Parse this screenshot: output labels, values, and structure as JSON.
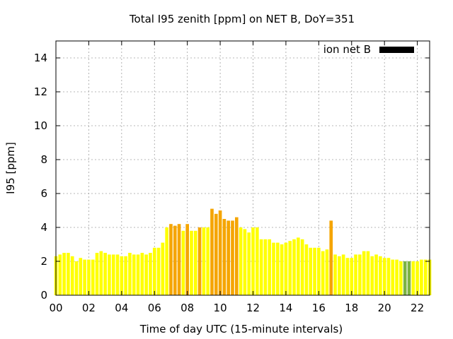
{
  "chart_data": {
    "type": "bar",
    "title": "Total I95 zenith [ppm] on NET B, DoY=351",
    "xlabel": "Time of day UTC (15-minute intervals)",
    "ylabel": "I95 [ppm]",
    "ylim": [
      0,
      15
    ],
    "xlim": [
      0,
      22.75
    ],
    "yticks": [
      "0",
      "2",
      "4",
      "6",
      "8",
      "10",
      "12",
      "14"
    ],
    "xticks": [
      "00",
      "02",
      "04",
      "06",
      "08",
      "10",
      "12",
      "14",
      "16",
      "18",
      "20",
      "22"
    ],
    "grid": true,
    "legend": {
      "position": "top-right",
      "label": "ion net B",
      "color": "#000000"
    },
    "colors": {
      "yellow": "#ffff00",
      "orange": "#f5a500",
      "green": "#7cb342"
    },
    "series": [
      {
        "name": "ion net B",
        "values": [
          2.3,
          2.4,
          2.5,
          2.5,
          2.3,
          2.0,
          2.2,
          2.1,
          2.1,
          2.1,
          2.5,
          2.6,
          2.5,
          2.4,
          2.4,
          2.4,
          2.3,
          2.3,
          2.5,
          2.4,
          2.4,
          2.5,
          2.4,
          2.5,
          2.8,
          2.8,
          3.1,
          4.0,
          4.2,
          4.1,
          4.2,
          3.8,
          4.2,
          3.8,
          3.8,
          4.0,
          4.0,
          4.0,
          5.1,
          4.8,
          5.0,
          4.5,
          4.4,
          4.4,
          4.6,
          4.0,
          3.9,
          3.7,
          4.0,
          4.0,
          3.3,
          3.3,
          3.3,
          3.1,
          3.1,
          3.0,
          3.1,
          3.2,
          3.3,
          3.4,
          3.3,
          3.0,
          2.8,
          2.8,
          2.8,
          2.6,
          2.7,
          4.4,
          2.4,
          2.3,
          2.4,
          2.2,
          2.2,
          2.4,
          2.4,
          2.6,
          2.6,
          2.3,
          2.4,
          2.3,
          2.2,
          2.2,
          2.1,
          2.1,
          2.0,
          2.0,
          2.0,
          2.0,
          2.0,
          2.1,
          2.1,
          2.1
        ],
        "colors": [
          "yellow",
          "yellow",
          "yellow",
          "yellow",
          "yellow",
          "yellow",
          "yellow",
          "yellow",
          "yellow",
          "yellow",
          "yellow",
          "yellow",
          "yellow",
          "yellow",
          "yellow",
          "yellow",
          "yellow",
          "yellow",
          "yellow",
          "yellow",
          "yellow",
          "yellow",
          "yellow",
          "yellow",
          "yellow",
          "yellow",
          "yellow",
          "yellow",
          "orange",
          "orange",
          "orange",
          "yellow",
          "orange",
          "yellow",
          "yellow",
          "orange",
          "yellow",
          "yellow",
          "orange",
          "orange",
          "orange",
          "orange",
          "orange",
          "orange",
          "orange",
          "yellow",
          "yellow",
          "yellow",
          "yellow",
          "yellow",
          "yellow",
          "yellow",
          "yellow",
          "yellow",
          "yellow",
          "yellow",
          "yellow",
          "yellow",
          "yellow",
          "yellow",
          "yellow",
          "yellow",
          "yellow",
          "yellow",
          "yellow",
          "yellow",
          "yellow",
          "orange",
          "yellow",
          "yellow",
          "yellow",
          "yellow",
          "yellow",
          "yellow",
          "yellow",
          "yellow",
          "yellow",
          "yellow",
          "yellow",
          "yellow",
          "yellow",
          "yellow",
          "yellow",
          "yellow",
          "yellow",
          "green",
          "green",
          "yellow",
          "yellow",
          "yellow",
          "yellow",
          "yellow"
        ]
      }
    ]
  }
}
